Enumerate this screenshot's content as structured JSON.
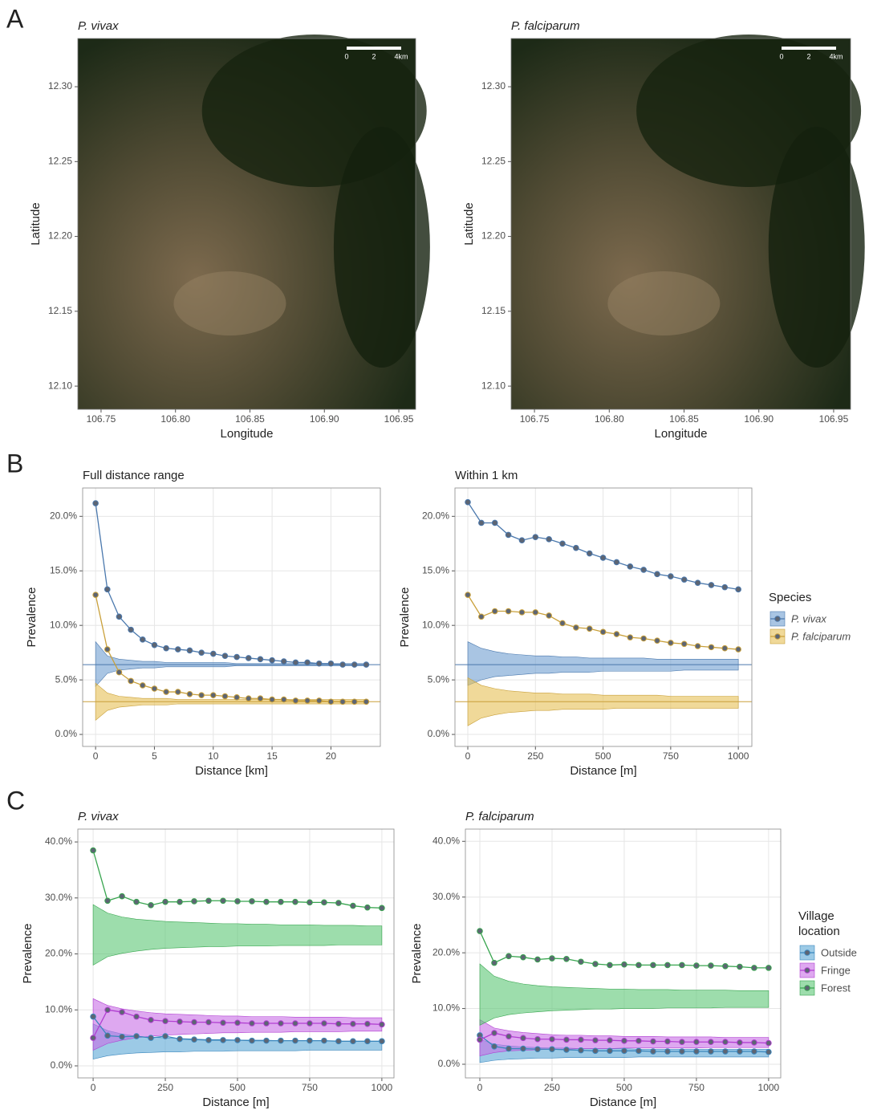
{
  "panel_labels": [
    "A",
    "B",
    "C"
  ],
  "chart_data": [
    {
      "type": "map",
      "title": "P. vivax",
      "xlabel": "Longitude",
      "ylabel": "Latitude",
      "xlim": [
        106.7344,
        106.9613
      ],
      "ylim": [
        12.0845,
        12.3322
      ],
      "xticks": [
        106.75,
        {
          "value": 106.8,
          "label": "106.80"
        },
        106.85,
        {
          "value": 106.9,
          "label": "106.90"
        },
        106.95
      ],
      "yticks": [
        {
          "value": 12.1,
          "label": "12.10"
        },
        12.15,
        {
          "value": 12.2,
          "label": "12.20"
        },
        12.25,
        {
          "value": 12.3,
          "label": "12.30"
        }
      ],
      "scale_labels": [
        "0",
        "2",
        "4km"
      ]
    },
    {
      "type": "map",
      "title": "P. falciparum",
      "xlabel": "Longitude",
      "ylabel": "Latitude",
      "xlim": [
        106.7344,
        106.9613
      ],
      "ylim": [
        12.0845,
        12.3322
      ],
      "xticks": [
        106.75,
        {
          "value": 106.8,
          "label": "106.80"
        },
        106.85,
        {
          "value": 106.9,
          "label": "106.90"
        },
        106.95
      ],
      "yticks": [
        {
          "value": 12.1,
          "label": "12.10"
        },
        12.15,
        {
          "value": 12.2,
          "label": "12.20"
        },
        12.25,
        {
          "value": 12.3,
          "label": "12.30"
        }
      ],
      "scale_labels": [
        "0",
        "2",
        "4km"
      ]
    },
    {
      "type": "line",
      "title": "Full distance range",
      "xlabel": "Distance [km]",
      "ylabel": "Prevalence",
      "grid": true,
      "xlim": [
        -1.1,
        24.2
      ],
      "ylim": [
        -1.1,
        22.6
      ],
      "xticks": [
        0,
        5,
        10,
        15,
        20
      ],
      "yticks": [
        {
          "value": 0,
          "label": "0.0%"
        },
        {
          "value": 5,
          "label": "5.0%"
        },
        {
          "value": 10,
          "label": "10.0%"
        },
        {
          "value": 15,
          "label": "15.0%"
        },
        {
          "value": 20,
          "label": "20.0%"
        }
      ],
      "x": [
        0,
        1,
        2,
        3,
        4,
        5,
        6,
        7,
        8,
        9,
        10,
        11,
        12,
        13,
        14,
        15,
        16,
        17,
        18,
        19,
        20,
        21,
        22,
        23
      ],
      "series": [
        {
          "name": "P. vivax",
          "color": "#4a78ad",
          "fill": "#6f9fd0",
          "baseline": 6.4,
          "values": [
            21.2,
            13.3,
            10.8,
            9.6,
            8.7,
            8.2,
            7.9,
            7.8,
            7.7,
            7.5,
            7.4,
            7.2,
            7.1,
            7.0,
            6.9,
            6.8,
            6.7,
            6.6,
            6.6,
            6.5,
            6.5,
            6.4,
            6.4,
            6.4
          ],
          "band_low": [
            4.4,
            5.6,
            5.9,
            6.0,
            6.1,
            6.1,
            6.2,
            6.2,
            6.2,
            6.2,
            6.2,
            6.2,
            6.3,
            6.3,
            6.3,
            6.3,
            6.3,
            6.3,
            6.3,
            6.3,
            6.3,
            6.3,
            6.3,
            6.3
          ],
          "band_high": [
            8.5,
            7.2,
            6.9,
            6.8,
            6.7,
            6.7,
            6.6,
            6.6,
            6.6,
            6.6,
            6.6,
            6.6,
            6.5,
            6.5,
            6.5,
            6.5,
            6.5,
            6.5,
            6.5,
            6.5,
            6.5,
            6.5,
            6.5,
            6.5
          ]
        },
        {
          "name": "P. falciparum",
          "color": "#c9a03a",
          "fill": "#e6bf55",
          "baseline": 3.0,
          "values": [
            12.8,
            7.8,
            5.7,
            4.9,
            4.5,
            4.2,
            3.9,
            3.9,
            3.7,
            3.6,
            3.6,
            3.5,
            3.4,
            3.3,
            3.3,
            3.2,
            3.2,
            3.1,
            3.1,
            3.1,
            3.0,
            3.0,
            3.0,
            3.0
          ],
          "band_low": [
            1.3,
            2.2,
            2.5,
            2.6,
            2.7,
            2.7,
            2.7,
            2.8,
            2.8,
            2.8,
            2.8,
            2.8,
            2.8,
            2.8,
            2.8,
            2.8,
            2.8,
            2.8,
            2.8,
            2.8,
            2.8,
            2.8,
            2.8,
            2.8
          ],
          "band_high": [
            4.7,
            3.8,
            3.5,
            3.4,
            3.3,
            3.3,
            3.3,
            3.2,
            3.2,
            3.2,
            3.2,
            3.2,
            3.2,
            3.2,
            3.2,
            3.2,
            3.2,
            3.2,
            3.2,
            3.2,
            3.2,
            3.2,
            3.2,
            3.2
          ]
        }
      ]
    },
    {
      "type": "line",
      "title": "Within 1 km",
      "xlabel": "Distance [m]",
      "ylabel": "Prevalence",
      "grid": true,
      "legend_title": [
        "Species"
      ],
      "xlim": [
        -47.5,
        1050
      ],
      "ylim": [
        -1.1,
        22.6
      ],
      "xticks": [
        0,
        250,
        500,
        750,
        1000
      ],
      "yticks": [
        {
          "value": 0,
          "label": "0.0%"
        },
        {
          "value": 5,
          "label": "5.0%"
        },
        {
          "value": 10,
          "label": "10.0%"
        },
        {
          "value": 15,
          "label": "15.0%"
        },
        {
          "value": 20,
          "label": "20.0%"
        }
      ],
      "x": [
        0,
        50,
        100,
        150,
        200,
        250,
        300,
        350,
        400,
        450,
        500,
        550,
        600,
        650,
        700,
        750,
        800,
        850,
        900,
        950,
        1000
      ],
      "series": [
        {
          "name": "P. vivax",
          "color": "#4a78ad",
          "fill": "#6f9fd0",
          "baseline": 6.4,
          "values": [
            21.3,
            19.4,
            19.4,
            18.3,
            17.8,
            18.1,
            17.9,
            17.5,
            17.1,
            16.6,
            16.2,
            15.8,
            15.4,
            15.1,
            14.7,
            14.5,
            14.2,
            13.9,
            13.7,
            13.5,
            13.3
          ],
          "band_low": [
            4.5,
            5.0,
            5.3,
            5.4,
            5.5,
            5.6,
            5.6,
            5.7,
            5.7,
            5.7,
            5.8,
            5.8,
            5.8,
            5.8,
            5.8,
            5.8,
            5.9,
            5.9,
            5.9,
            5.9,
            5.9
          ],
          "band_high": [
            8.5,
            7.9,
            7.6,
            7.4,
            7.3,
            7.2,
            7.2,
            7.1,
            7.1,
            7.0,
            7.0,
            7.0,
            7.0,
            7.0,
            6.9,
            6.9,
            6.9,
            6.9,
            6.9,
            6.9,
            6.9
          ]
        },
        {
          "name": "P. falciparum",
          "color": "#c9a03a",
          "fill": "#e6bf55",
          "baseline": 3.0,
          "values": [
            12.8,
            10.8,
            11.3,
            11.3,
            11.2,
            11.2,
            10.9,
            10.2,
            9.8,
            9.7,
            9.4,
            9.2,
            8.9,
            8.8,
            8.6,
            8.4,
            8.3,
            8.1,
            8.0,
            7.9,
            7.8
          ],
          "band_low": [
            0.8,
            1.5,
            1.8,
            2.0,
            2.1,
            2.2,
            2.2,
            2.3,
            2.3,
            2.3,
            2.3,
            2.4,
            2.4,
            2.4,
            2.4,
            2.4,
            2.4,
            2.4,
            2.4,
            2.4,
            2.4
          ],
          "band_high": [
            5.2,
            4.5,
            4.2,
            4.0,
            3.9,
            3.8,
            3.8,
            3.7,
            3.7,
            3.7,
            3.6,
            3.6,
            3.6,
            3.6,
            3.6,
            3.5,
            3.5,
            3.5,
            3.5,
            3.5,
            3.5
          ]
        }
      ]
    },
    {
      "type": "line",
      "title": "P. vivax",
      "xlabel": "Distance [m]",
      "ylabel": "Prevalence",
      "grid": true,
      "xlim": [
        -53,
        1042
      ],
      "ylim": [
        -2.15,
        42.3
      ],
      "xticks": [
        0,
        250,
        500,
        750,
        1000
      ],
      "yticks": [
        {
          "value": 0,
          "label": "0.0%"
        },
        {
          "value": 10,
          "label": "10.0%"
        },
        {
          "value": 20,
          "label": "20.0%"
        },
        {
          "value": 30,
          "label": "30.0%"
        },
        {
          "value": 40,
          "label": "40.0%"
        }
      ],
      "x": [
        0,
        50,
        100,
        150,
        200,
        250,
        300,
        350,
        400,
        450,
        500,
        550,
        600,
        650,
        700,
        750,
        800,
        850,
        900,
        950,
        1000
      ],
      "series": [
        {
          "name": "Outside",
          "color": "#3b87bd",
          "fill": "#5aa6d6",
          "values": [
            8.8,
            5.4,
            5.2,
            5.3,
            5.0,
            5.3,
            4.8,
            4.7,
            4.6,
            4.6,
            4.6,
            4.5,
            4.5,
            4.5,
            4.5,
            4.5,
            4.5,
            4.4,
            4.4,
            4.4,
            4.4
          ],
          "band_low": [
            1.2,
            1.8,
            2.1,
            2.3,
            2.4,
            2.5,
            2.5,
            2.6,
            2.6,
            2.6,
            2.7,
            2.7,
            2.7,
            2.7,
            2.7,
            2.8,
            2.8,
            2.8,
            2.8,
            2.8,
            2.8
          ],
          "band_high": [
            7.5,
            6.3,
            5.7,
            5.3,
            5.1,
            5.0,
            4.9,
            4.8,
            4.7,
            4.7,
            4.6,
            4.6,
            4.6,
            4.5,
            4.5,
            4.5,
            4.5,
            4.4,
            4.4,
            4.4,
            4.4
          ]
        },
        {
          "name": "Fringe",
          "color": "#b13fd1",
          "fill": "#c86ee6",
          "values": [
            5.0,
            10.0,
            9.6,
            8.8,
            8.2,
            8.0,
            7.9,
            7.8,
            7.8,
            7.7,
            7.7,
            7.6,
            7.6,
            7.6,
            7.6,
            7.6,
            7.6,
            7.5,
            7.5,
            7.5,
            7.4
          ],
          "band_low": [
            2.8,
            4.0,
            4.6,
            5.0,
            5.3,
            5.5,
            5.6,
            5.7,
            5.8,
            5.9,
            5.9,
            6.0,
            6.0,
            6.0,
            6.1,
            6.1,
            6.1,
            6.1,
            6.2,
            6.2,
            6.2
          ],
          "band_high": [
            12.0,
            10.8,
            10.2,
            9.8,
            9.5,
            9.3,
            9.2,
            9.1,
            9.0,
            8.9,
            8.9,
            8.8,
            8.8,
            8.8,
            8.7,
            8.7,
            8.7,
            8.7,
            8.6,
            8.6,
            8.6
          ]
        },
        {
          "name": "Forest",
          "color": "#38a54f",
          "fill": "#5cc775",
          "values": [
            38.5,
            29.5,
            30.3,
            29.3,
            28.7,
            29.3,
            29.3,
            29.4,
            29.5,
            29.5,
            29.4,
            29.4,
            29.3,
            29.3,
            29.3,
            29.2,
            29.2,
            29.1,
            28.6,
            28.3,
            28.2
          ],
          "band_low": [
            18.0,
            19.5,
            20.1,
            20.5,
            20.8,
            21.0,
            21.1,
            21.2,
            21.3,
            21.3,
            21.4,
            21.4,
            21.4,
            21.5,
            21.5,
            21.5,
            21.5,
            21.6,
            21.6,
            21.6,
            21.6
          ],
          "band_high": [
            28.8,
            27.3,
            26.6,
            26.2,
            26.0,
            25.8,
            25.7,
            25.6,
            25.5,
            25.4,
            25.4,
            25.3,
            25.3,
            25.2,
            25.2,
            25.2,
            25.1,
            25.1,
            25.1,
            25.0,
            25.0
          ]
        }
      ]
    },
    {
      "type": "line",
      "title": "P. falciparum",
      "xlabel": "Distance [m]",
      "ylabel": "Prevalence",
      "grid": true,
      "legend_title": [
        "Village",
        "location"
      ],
      "xlim": [
        -50,
        1042
      ],
      "ylim": [
        -2.45,
        42.2
      ],
      "xticks": [
        0,
        250,
        500,
        750,
        1000
      ],
      "yticks": [
        {
          "value": 0,
          "label": "0.0%"
        },
        {
          "value": 10,
          "label": "10.0%"
        },
        {
          "value": 20,
          "label": "20.0%"
        },
        {
          "value": 30,
          "label": "30.0%"
        },
        {
          "value": 40,
          "label": "40.0%"
        }
      ],
      "x": [
        0,
        50,
        100,
        150,
        200,
        250,
        300,
        350,
        400,
        450,
        500,
        550,
        600,
        650,
        700,
        750,
        800,
        850,
        900,
        950,
        1000
      ],
      "series": [
        {
          "name": "Outside",
          "color": "#3b87bd",
          "fill": "#5aa6d6",
          "values": [
            5.2,
            3.2,
            2.8,
            2.8,
            2.7,
            2.7,
            2.6,
            2.5,
            2.4,
            2.4,
            2.4,
            2.4,
            2.3,
            2.3,
            2.3,
            2.3,
            2.3,
            2.3,
            2.3,
            2.3,
            2.2
          ],
          "band_low": [
            0.3,
            0.7,
            0.9,
            1.0,
            1.1,
            1.1,
            1.2,
            1.2,
            1.2,
            1.2,
            1.2,
            1.3,
            1.3,
            1.3,
            1.3,
            1.3,
            1.3,
            1.3,
            1.3,
            1.3,
            1.3
          ],
          "band_high": [
            4.5,
            3.6,
            3.3,
            3.1,
            3.0,
            2.9,
            2.9,
            2.8,
            2.8,
            2.8,
            2.8,
            2.7,
            2.7,
            2.7,
            2.7,
            2.7,
            2.7,
            2.7,
            2.7,
            2.7,
            2.7
          ]
        },
        {
          "name": "Fringe",
          "color": "#b13fd1",
          "fill": "#c86ee6",
          "values": [
            4.4,
            5.6,
            5.0,
            4.7,
            4.5,
            4.5,
            4.4,
            4.4,
            4.3,
            4.3,
            4.2,
            4.2,
            4.1,
            4.1,
            4.0,
            4.0,
            4.0,
            4.0,
            3.9,
            3.9,
            3.8
          ],
          "band_low": [
            1.5,
            2.1,
            2.4,
            2.5,
            2.6,
            2.7,
            2.7,
            2.8,
            2.8,
            2.8,
            2.9,
            2.9,
            2.9,
            2.9,
            2.9,
            2.9,
            3.0,
            3.0,
            3.0,
            3.0,
            3.0
          ],
          "band_high": [
            8.0,
            6.5,
            6.0,
            5.7,
            5.5,
            5.3,
            5.2,
            5.2,
            5.1,
            5.1,
            5.0,
            5.0,
            5.0,
            4.9,
            4.9,
            4.9,
            4.9,
            4.8,
            4.8,
            4.8,
            4.8
          ]
        },
        {
          "name": "Forest",
          "color": "#38a54f",
          "fill": "#5cc775",
          "values": [
            23.9,
            18.2,
            19.4,
            19.2,
            18.8,
            19.0,
            18.9,
            18.4,
            18.0,
            17.8,
            17.9,
            17.8,
            17.8,
            17.8,
            17.8,
            17.7,
            17.7,
            17.6,
            17.5,
            17.3,
            17.3
          ],
          "band_low": [
            7.0,
            8.3,
            8.9,
            9.2,
            9.4,
            9.6,
            9.7,
            9.8,
            9.9,
            9.9,
            10.0,
            10.0,
            10.0,
            10.1,
            10.1,
            10.1,
            10.1,
            10.2,
            10.2,
            10.2,
            10.2
          ],
          "band_high": [
            18.0,
            15.8,
            14.9,
            14.4,
            14.1,
            13.9,
            13.8,
            13.7,
            13.6,
            13.5,
            13.5,
            13.4,
            13.4,
            13.4,
            13.3,
            13.3,
            13.3,
            13.3,
            13.2,
            13.2,
            13.2
          ]
        }
      ]
    }
  ]
}
